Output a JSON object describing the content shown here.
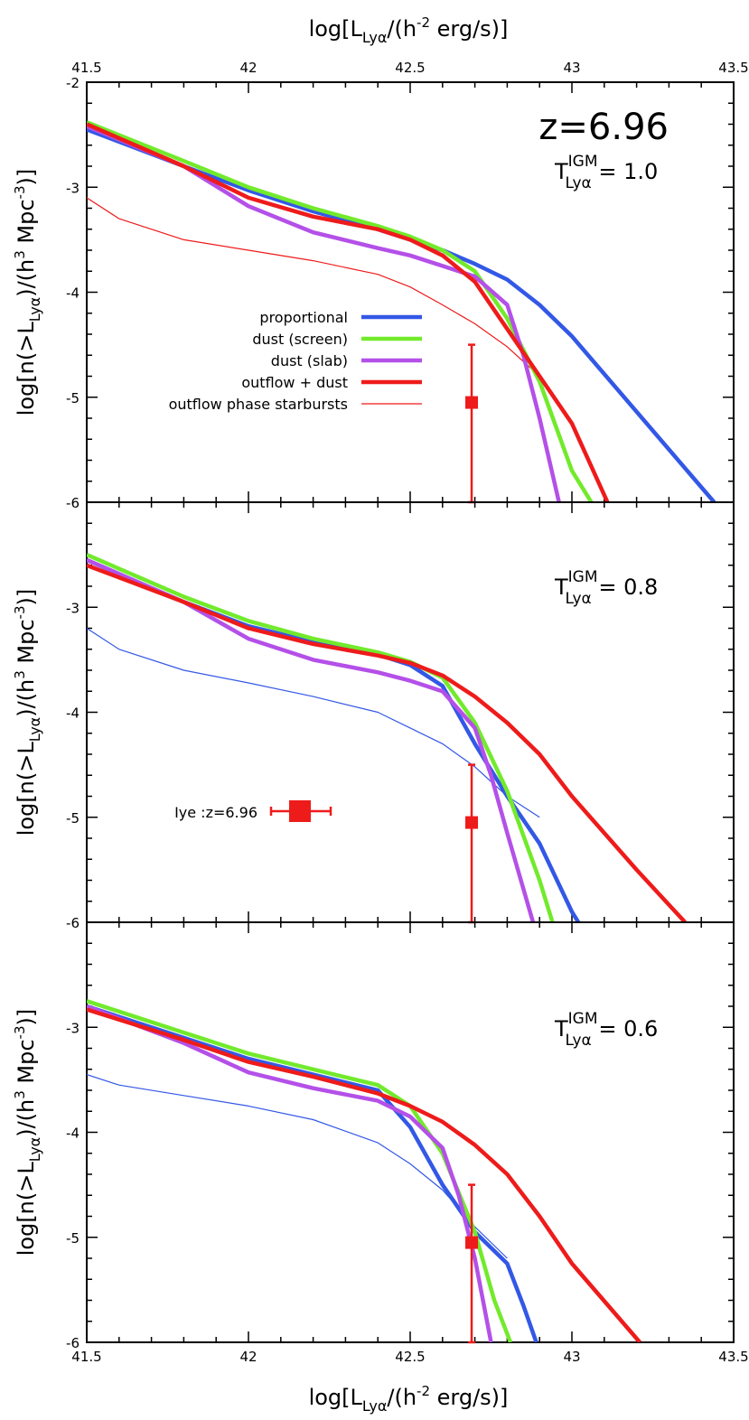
{
  "chart_data": {
    "type": "line",
    "top_xlabel": {
      "main": "log[L",
      "sub": "Lyα",
      "mid": "/(h",
      "sup": "-2",
      "tail": " erg/s)]"
    },
    "bottom_xlabel": {
      "main": "log[L",
      "sub": "Lyα",
      "mid": "/(h",
      "sup": "-2",
      "tail": " erg/s)]"
    },
    "ylabel": {
      "main": "log[n(>L",
      "sub": "Lyα",
      "mid": ")/(h",
      "sup": "3",
      "mid2": " Mpc",
      "sup2": "-3",
      "tail": ")]"
    },
    "xlim": [
      41.5,
      43.5
    ],
    "ylim": [
      -6,
      -2
    ],
    "x_ticks": [
      "41.5",
      "42",
      "42.5",
      "43",
      "43.5"
    ],
    "y_ticks_top_panel": [
      "-2",
      "-3",
      "-4",
      "-5",
      "-6"
    ],
    "y_ticks_other_panels": [
      "-3",
      "-4",
      "-5",
      "-6"
    ],
    "redshift_label": "z=6.96",
    "legend": [
      {
        "label": "proportional",
        "color": "#3358e6",
        "style": "thick"
      },
      {
        "label": "dust (screen)",
        "color": "#72ea2c",
        "style": "thick"
      },
      {
        "label": "dust (slab)",
        "color": "#b450e8",
        "style": "thick"
      },
      {
        "label": "outflow + dust",
        "color": "#ee1b1b",
        "style": "thick"
      },
      {
        "label": "outflow phase starbursts",
        "color": "#ee1b1b",
        "style": "thin"
      }
    ],
    "observation": {
      "x": 42.69,
      "y": -5.05,
      "y_err_low": -6.0,
      "y_err_high": -4.5,
      "color": "#ee1b1b"
    },
    "inset_legend": {
      "label": "Iye :z=6.96",
      "color": "#ee1b1b"
    },
    "panels": [
      {
        "t_label": {
          "main": "T",
          "sup": "IGM",
          "sub": "Lyα",
          "value": " = 1.0"
        },
        "series": [
          {
            "name": "proportional",
            "color": "#3358e6",
            "width": 4.5,
            "x": [
              41.5,
              41.8,
              42.0,
              42.2,
              42.4,
              42.5,
              42.6,
              42.7,
              42.8,
              42.9,
              43.0,
              43.44
            ],
            "y": [
              -2.45,
              -2.8,
              -3.03,
              -3.23,
              -3.4,
              -3.5,
              -3.6,
              -3.73,
              -3.88,
              -4.12,
              -4.42,
              -6.0
            ]
          },
          {
            "name": "dust (screen)",
            "color": "#72ea2c",
            "width": 4.5,
            "x": [
              41.5,
              41.8,
              42.0,
              42.2,
              42.4,
              42.5,
              42.6,
              42.7,
              42.8,
              42.9,
              43.0,
              43.06
            ],
            "y": [
              -2.38,
              -2.75,
              -3.0,
              -3.2,
              -3.37,
              -3.47,
              -3.6,
              -3.8,
              -4.25,
              -4.85,
              -5.7,
              -6.0
            ]
          },
          {
            "name": "dust (slab)",
            "color": "#b450e8",
            "width": 4.5,
            "x": [
              41.5,
              41.8,
              42.0,
              42.2,
              42.4,
              42.5,
              42.6,
              42.7,
              42.8,
              42.85,
              42.9,
              42.96
            ],
            "y": [
              -2.42,
              -2.8,
              -3.18,
              -3.43,
              -3.58,
              -3.65,
              -3.75,
              -3.85,
              -4.12,
              -4.6,
              -5.2,
              -6.0
            ]
          },
          {
            "name": "outflow + dust",
            "color": "#ee1b1b",
            "width": 4.5,
            "x": [
              41.5,
              41.8,
              42.0,
              42.2,
              42.4,
              42.5,
              42.6,
              42.7,
              42.8,
              42.9,
              43.0,
              43.11
            ],
            "y": [
              -2.4,
              -2.8,
              -3.1,
              -3.28,
              -3.4,
              -3.5,
              -3.65,
              -3.9,
              -4.35,
              -4.8,
              -5.25,
              -6.0
            ]
          },
          {
            "name": "outflow phase starbursts",
            "color": "#ee1b1b",
            "width": 1.2,
            "x": [
              41.5,
              41.6,
              41.8,
              42.0,
              42.2,
              42.4,
              42.5,
              42.6,
              42.7,
              42.8,
              42.9
            ],
            "y": [
              -3.1,
              -3.3,
              -3.5,
              -3.6,
              -3.7,
              -3.83,
              -3.95,
              -4.12,
              -4.3,
              -4.52,
              -4.8
            ]
          }
        ]
      },
      {
        "t_label": {
          "main": "T",
          "sup": "IGM",
          "sub": "Lyα",
          "value": " = 0.8"
        },
        "series": [
          {
            "name": "proportional",
            "color": "#3358e6",
            "width": 4.5,
            "x": [
              41.5,
              41.8,
              42.0,
              42.2,
              42.4,
              42.5,
              42.6,
              42.7,
              42.8,
              42.9,
              43.0,
              43.02
            ],
            "y": [
              -2.55,
              -2.95,
              -3.18,
              -3.33,
              -3.45,
              -3.55,
              -3.75,
              -4.3,
              -4.8,
              -5.25,
              -5.9,
              -6.0
            ]
          },
          {
            "name": "dust (screen)",
            "color": "#72ea2c",
            "width": 4.5,
            "x": [
              41.5,
              41.8,
              42.0,
              42.2,
              42.4,
              42.5,
              42.6,
              42.7,
              42.8,
              42.9,
              42.94
            ],
            "y": [
              -2.5,
              -2.9,
              -3.13,
              -3.3,
              -3.43,
              -3.52,
              -3.67,
              -4.1,
              -4.75,
              -5.6,
              -6.0
            ]
          },
          {
            "name": "dust (slab)",
            "color": "#b450e8",
            "width": 4.5,
            "x": [
              41.5,
              41.8,
              42.0,
              42.2,
              42.4,
              42.5,
              42.6,
              42.7,
              42.75,
              42.8,
              42.88
            ],
            "y": [
              -2.55,
              -2.95,
              -3.3,
              -3.5,
              -3.62,
              -3.7,
              -3.8,
              -4.15,
              -4.6,
              -5.15,
              -6.0
            ]
          },
          {
            "name": "outflow + dust",
            "color": "#ee1b1b",
            "width": 4.5,
            "x": [
              41.5,
              41.8,
              42.0,
              42.2,
              42.4,
              42.5,
              42.6,
              42.7,
              42.8,
              42.9,
              43.0,
              43.2,
              43.35
            ],
            "y": [
              -2.6,
              -2.95,
              -3.2,
              -3.35,
              -3.46,
              -3.53,
              -3.65,
              -3.85,
              -4.1,
              -4.4,
              -4.8,
              -5.5,
              -6.0
            ]
          },
          {
            "name": "outflow phase starbursts",
            "color": "#3358e6",
            "width": 1.2,
            "x": [
              41.5,
              41.6,
              41.8,
              42.0,
              42.2,
              42.4,
              42.5,
              42.6,
              42.7,
              42.8,
              42.9
            ],
            "y": [
              -3.2,
              -3.4,
              -3.6,
              -3.72,
              -3.85,
              -4.0,
              -4.15,
              -4.3,
              -4.52,
              -4.8,
              -5.0
            ]
          }
        ]
      },
      {
        "t_label": {
          "main": "T",
          "sup": "IGM",
          "sub": "Lyα",
          "value": " = 0.6"
        },
        "series": [
          {
            "name": "proportional",
            "color": "#3358e6",
            "width": 4.5,
            "x": [
              41.5,
              41.8,
              42.0,
              42.2,
              42.4,
              42.5,
              42.6,
              42.7,
              42.8,
              42.85,
              42.89
            ],
            "y": [
              -2.8,
              -3.1,
              -3.3,
              -3.45,
              -3.6,
              -3.95,
              -4.5,
              -4.95,
              -5.25,
              -5.65,
              -6.0
            ]
          },
          {
            "name": "dust (screen)",
            "color": "#72ea2c",
            "width": 4.5,
            "x": [
              41.5,
              41.8,
              42.0,
              42.2,
              42.4,
              42.5,
              42.6,
              42.7,
              42.76,
              42.81
            ],
            "y": [
              -2.75,
              -3.05,
              -3.25,
              -3.4,
              -3.55,
              -3.75,
              -4.2,
              -4.95,
              -5.6,
              -6.0
            ]
          },
          {
            "name": "dust (slab)",
            "color": "#b450e8",
            "width": 4.5,
            "x": [
              41.5,
              41.8,
              42.0,
              42.2,
              42.4,
              42.5,
              42.6,
              42.65,
              42.7,
              42.75
            ],
            "y": [
              -2.8,
              -3.15,
              -3.43,
              -3.58,
              -3.7,
              -3.85,
              -4.15,
              -4.6,
              -5.2,
              -6.0
            ]
          },
          {
            "name": "outflow + dust",
            "color": "#ee1b1b",
            "width": 4.5,
            "x": [
              41.5,
              41.8,
              42.0,
              42.2,
              42.4,
              42.5,
              42.6,
              42.7,
              42.8,
              42.9,
              43.0,
              43.21
            ],
            "y": [
              -2.83,
              -3.12,
              -3.33,
              -3.47,
              -3.63,
              -3.75,
              -3.9,
              -4.12,
              -4.4,
              -4.8,
              -5.25,
              -6.0
            ]
          },
          {
            "name": "outflow phase starbursts",
            "color": "#3358e6",
            "width": 1.2,
            "x": [
              41.5,
              41.6,
              41.8,
              42.0,
              42.2,
              42.4,
              42.5,
              42.6,
              42.7,
              42.8
            ],
            "y": [
              -3.45,
              -3.55,
              -3.65,
              -3.75,
              -3.88,
              -4.1,
              -4.3,
              -4.55,
              -4.9,
              -5.2
            ]
          }
        ]
      }
    ]
  }
}
